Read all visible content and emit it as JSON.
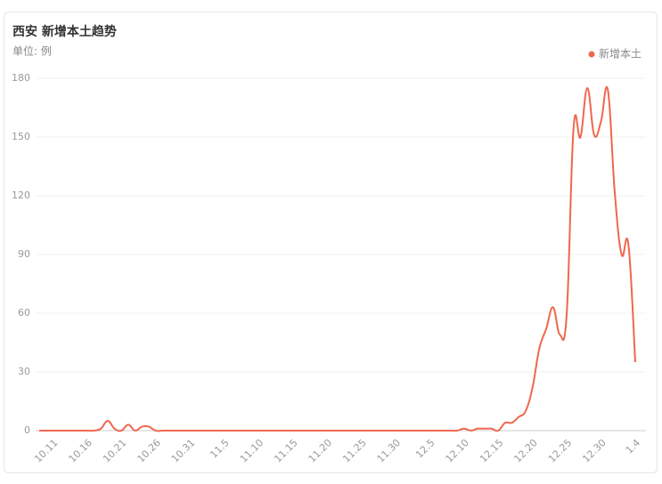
{
  "chart_data": {
    "type": "line",
    "title": "西安 新增本土趋势",
    "subtitle": "单位: 例",
    "categories": [
      null,
      null,
      "10.11",
      null,
      null,
      null,
      null,
      "10.16",
      null,
      null,
      null,
      null,
      "10.21",
      null,
      null,
      null,
      null,
      "10.26",
      null,
      null,
      null,
      null,
      "10.31",
      null,
      null,
      null,
      null,
      "11.5",
      null,
      null,
      null,
      null,
      "11.10",
      null,
      null,
      null,
      null,
      "11.15",
      null,
      null,
      null,
      null,
      "11.20",
      null,
      null,
      null,
      null,
      "11.25",
      null,
      null,
      null,
      null,
      "11.30",
      null,
      null,
      null,
      null,
      "12.5",
      null,
      null,
      null,
      null,
      "12.10",
      null,
      null,
      null,
      null,
      "12.15",
      null,
      null,
      null,
      null,
      "12.20",
      null,
      null,
      null,
      null,
      "12.25",
      null,
      null,
      null,
      null,
      "12.30",
      null,
      null,
      null,
      null,
      "1.4"
    ],
    "series": [
      {
        "name": "新增本土",
        "color": "#f0674e",
        "values": [
          0,
          0,
          0,
          0,
          0,
          0,
          0,
          0,
          0,
          1,
          5,
          1,
          0,
          3,
          0,
          2,
          2,
          0,
          0,
          0,
          0,
          0,
          0,
          0,
          0,
          0,
          0,
          0,
          0,
          0,
          0,
          0,
          0,
          0,
          0,
          0,
          0,
          0,
          0,
          0,
          0,
          0,
          0,
          0,
          0,
          0,
          0,
          0,
          0,
          0,
          0,
          0,
          0,
          0,
          0,
          0,
          0,
          0,
          0,
          0,
          0,
          0,
          1,
          0,
          1,
          1,
          1,
          0,
          4,
          4,
          7,
          10,
          22,
          42,
          52,
          63,
          49,
          60,
          155,
          150,
          175,
          151,
          158,
          174,
          122,
          90,
          95,
          35
        ]
      }
    ],
    "ylim": [
      0,
      180
    ],
    "yticks": [
      0,
      30,
      60,
      90,
      120,
      150,
      180
    ],
    "grid": true,
    "legend": "top-right"
  }
}
